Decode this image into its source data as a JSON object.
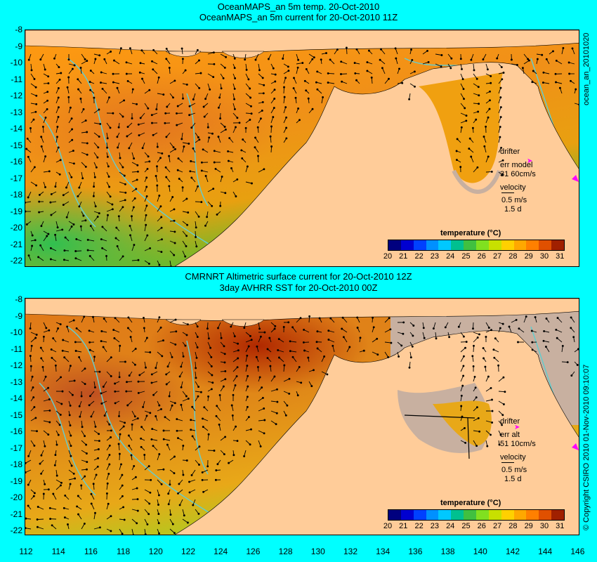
{
  "panel1": {
    "title_line1": "OceanMAPS_an 5m temp. 20-Oct-2010",
    "title_line2": "OceanMAPS_an 5m current for 20-Oct-2010 11Z",
    "side_label": "ocean_an_20101020",
    "legend": {
      "drifter": "drifter",
      "err": "err model",
      "err_values": "31 60cm/s",
      "velocity": "velocity",
      "speed": "0.5 m/s",
      "duration": "1.5 d"
    },
    "colorbar_title": "temperature (°C)"
  },
  "panel2": {
    "title_line1": "CMRNRT Altimetric surface current for 20-Oct-2010 12Z",
    "title_line2": "3day AVHRR SST for 20-Oct-2010 00Z",
    "side_label": "© Copyright CSIRO 2010   01-Nov-2010 09:10:07",
    "legend": {
      "drifter": "drifter",
      "err": "err alt",
      "err_values": "51 10cm/s",
      "velocity": "velocity",
      "speed": "0.5 m/s",
      "duration": "1.5 d"
    },
    "colorbar_title": "temperature (°C)"
  },
  "latitude_labels": [
    "-8",
    "-9",
    "-10",
    "-11",
    "-12",
    "-13",
    "-14",
    "-15",
    "-16",
    "-17",
    "-18",
    "-19",
    "-20",
    "-21",
    "-22"
  ],
  "longitude_labels": [
    "112",
    "114",
    "116",
    "118",
    "120",
    "122",
    "124",
    "126",
    "128",
    "130",
    "132",
    "134",
    "136",
    "138",
    "140",
    "142",
    "144",
    "146"
  ],
  "colorbar_labels": [
    "20",
    "21",
    "22",
    "23",
    "24",
    "25",
    "26",
    "27",
    "28",
    "29",
    "30",
    "31"
  ],
  "colors": {
    "background": "#00ffff",
    "land": "#ffcc99",
    "missing": "#c8b0a0",
    "contour": "#66cccc",
    "drifter": "#ff00ff",
    "scale": [
      "#00007f",
      "#0000d0",
      "#0040ff",
      "#0090ff",
      "#00c8ff",
      "#00c090",
      "#40c040",
      "#80e020",
      "#c8e000",
      "#ffd000",
      "#ffa800",
      "#ff8000",
      "#e05000",
      "#a02000"
    ]
  }
}
